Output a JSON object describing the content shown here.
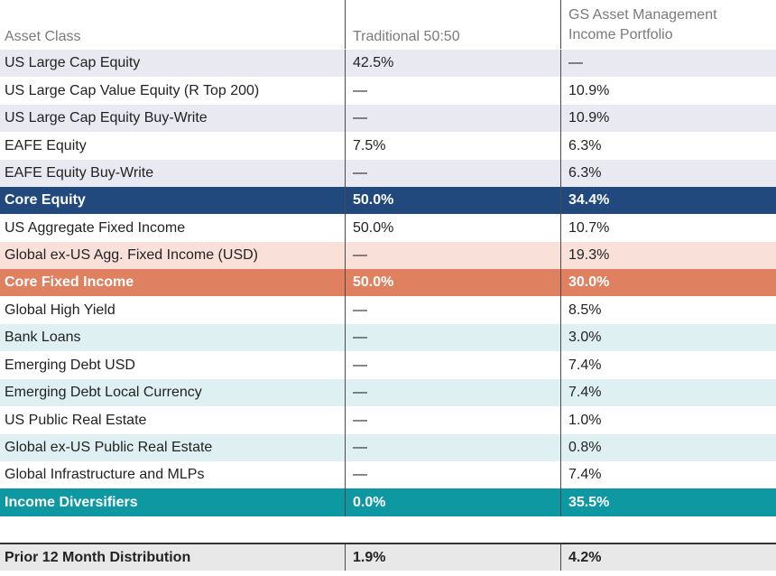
{
  "colors": {
    "stripe_gray": "#e9e9f1",
    "core_equity": "#22497e",
    "stripe_peach": "#f9e1da",
    "core_fixed_income": "#df8160",
    "stripe_teal": "#dff0f2",
    "income_diversifiers": "#0e98a2",
    "footer_gray": "#e8e8e8"
  },
  "header": {
    "asset_class": "Asset Class",
    "traditional": "Traditional 50:50",
    "gs_line1": "GS Asset Management",
    "gs_line2": "Income Portfolio"
  },
  "rows": [
    {
      "label": "US Large Cap Equity",
      "trad": "42.5%",
      "gs": "—"
    },
    {
      "label": "US Large Cap Value Equity (R Top 200)",
      "trad": "—",
      "gs": "10.9%"
    },
    {
      "label": "US Large Cap Equity Buy-Write",
      "trad": "—",
      "gs": "10.9%"
    },
    {
      "label": "EAFE Equity",
      "trad": "7.5%",
      "gs": "6.3%"
    },
    {
      "label": "EAFE Equity Buy-Write",
      "trad": "—",
      "gs": "6.3%"
    },
    {
      "label": "Core Equity",
      "trad": "50.0%",
      "gs": "34.4%"
    },
    {
      "label": "US Aggregate Fixed Income",
      "trad": "50.0%",
      "gs": "10.7%"
    },
    {
      "label": "Global ex-US Agg. Fixed Income (USD)",
      "trad": "—",
      "gs": "19.3%"
    },
    {
      "label": "Core Fixed Income",
      "trad": "50.0%",
      "gs": "30.0%"
    },
    {
      "label": "Global High Yield",
      "trad": "—",
      "gs": "8.5%"
    },
    {
      "label": "Bank Loans",
      "trad": "—",
      "gs": "3.0%"
    },
    {
      "label": "Emerging Debt USD",
      "trad": "—",
      "gs": "7.4%"
    },
    {
      "label": "Emerging Debt Local Currency",
      "trad": "—",
      "gs": "7.4%"
    },
    {
      "label": "US Public Real Estate",
      "trad": "—",
      "gs": "1.0%"
    },
    {
      "label": "Global ex-US Public Real Estate",
      "trad": "—",
      "gs": "0.8%"
    },
    {
      "label": "Global Infrastructure and MLPs",
      "trad": "—",
      "gs": "7.4%"
    },
    {
      "label": "Income Diversifiers",
      "trad": "0.0%",
      "gs": "35.5%"
    }
  ],
  "footer": {
    "label": "Prior 12 Month Distribution",
    "trad": "1.9%",
    "gs": "4.2%"
  }
}
